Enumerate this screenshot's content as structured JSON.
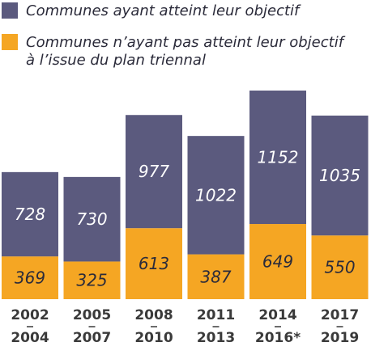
{
  "chart_data": {
    "type": "bar",
    "stacked": true,
    "categories": [
      [
        "2002",
        "2004"
      ],
      [
        "2005",
        "2007"
      ],
      [
        "2008",
        "2010"
      ],
      [
        "2011",
        "2013"
      ],
      [
        "2014",
        "2016*"
      ],
      [
        "2017",
        "2019"
      ]
    ],
    "series": [
      {
        "name": "Communes n’ayant pas atteint leur objectif à l’issue du plan triennal",
        "legend_lines": [
          "Communes n’ayant pas atteint leur objectif",
          "à l’issue du plan triennal"
        ],
        "color": "#F5A623",
        "values": [
          369,
          325,
          613,
          387,
          649,
          550
        ]
      },
      {
        "name": "Communes ayant atteint leur objectif",
        "legend_lines": [
          "Communes ayant atteint leur objectif"
        ],
        "color": "#5B5A7E",
        "values": [
          728,
          730,
          977,
          1022,
          1152,
          1035
        ]
      }
    ],
    "ylim": [
      0,
      1801
    ],
    "legend": "top-left",
    "grid": false
  }
}
